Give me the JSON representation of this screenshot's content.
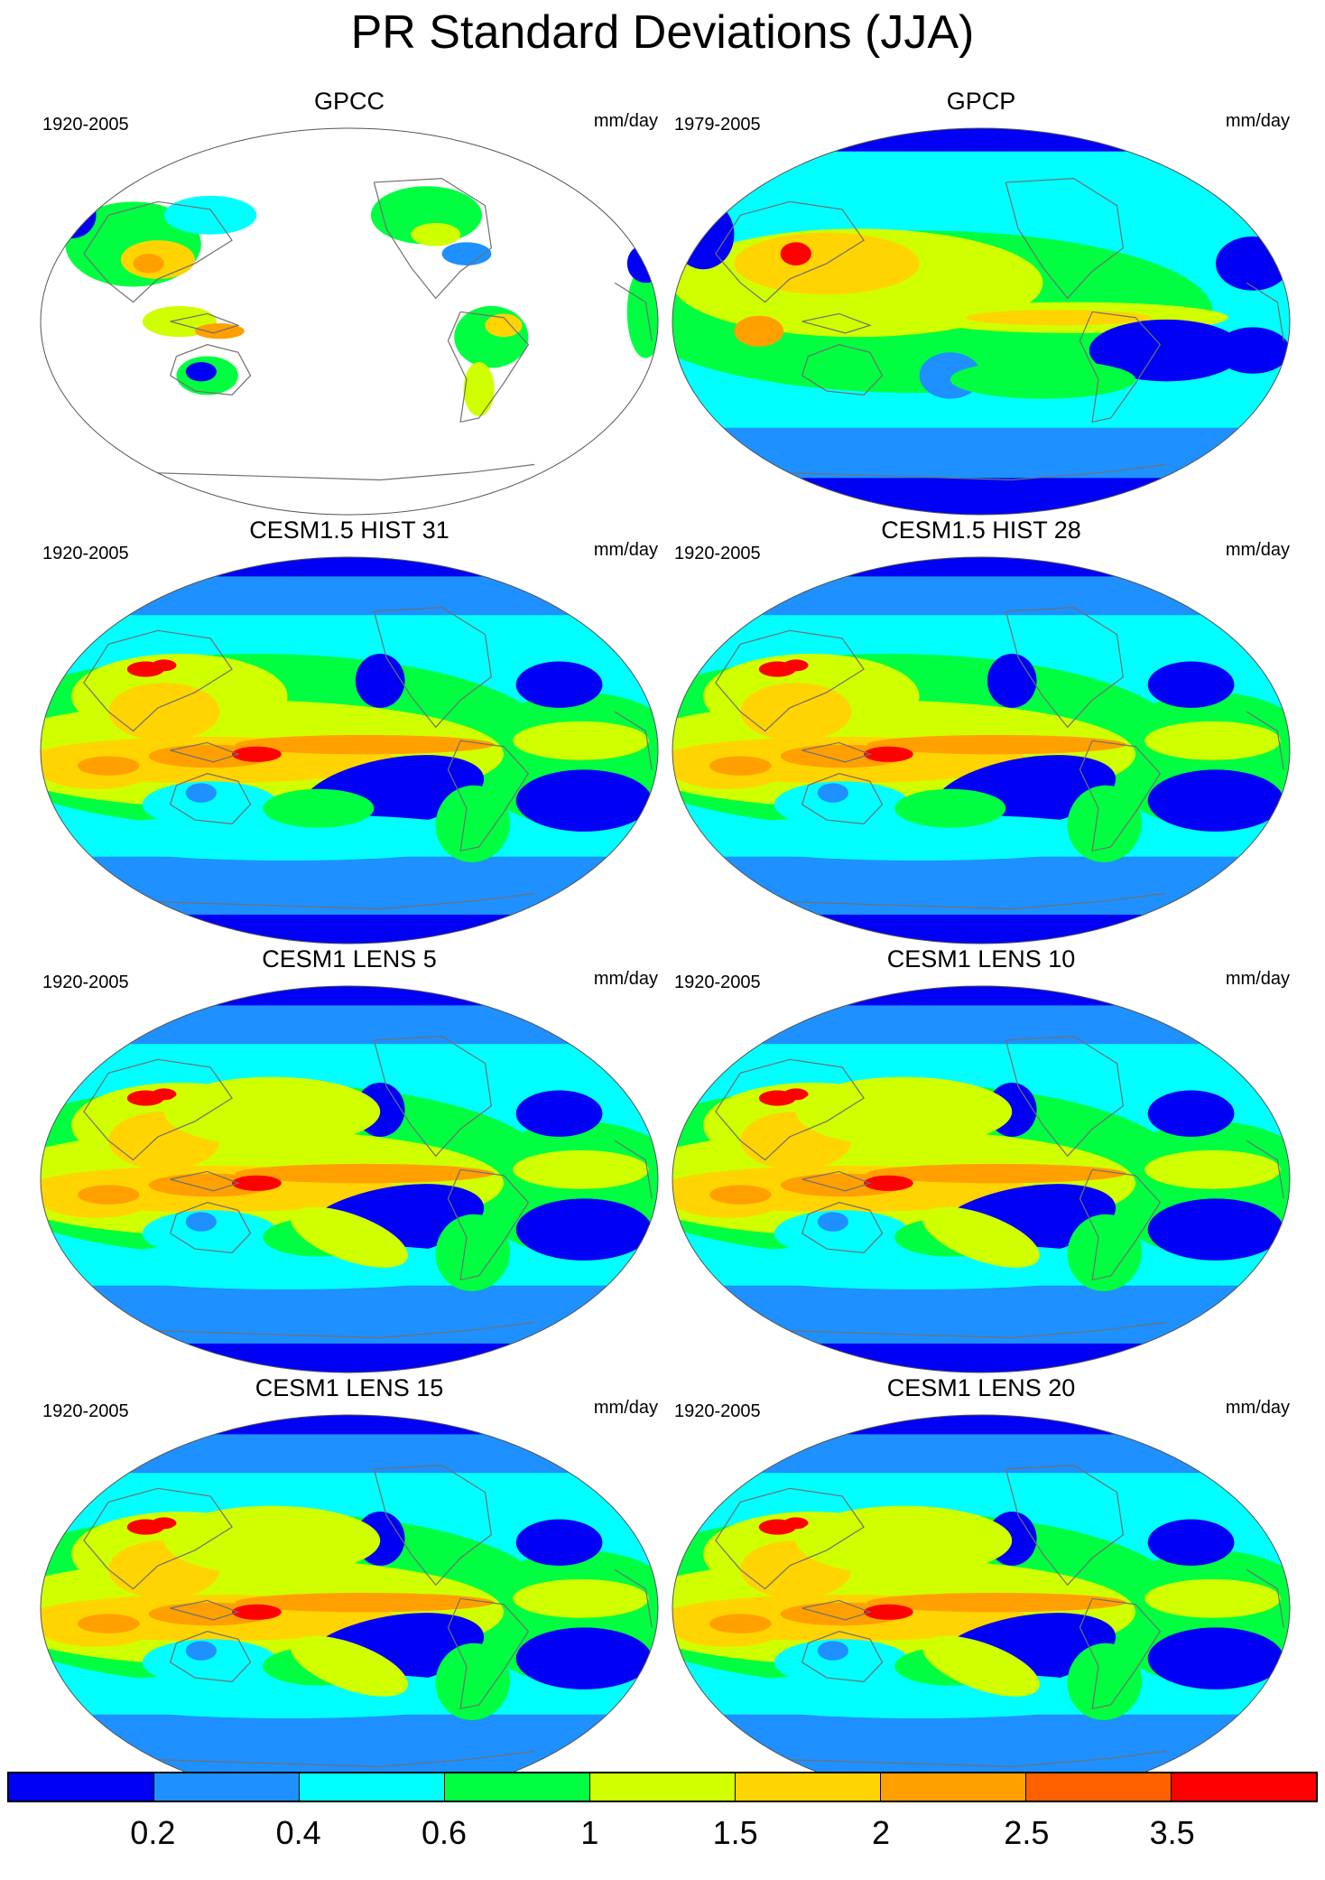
{
  "figure": {
    "title": "PR Standard Deviations (JJA)",
    "colorbar": {
      "colors": [
        "#0000f5",
        "#1e90ff",
        "#00ffff",
        "#00ff40",
        "#d0ff00",
        "#ffd400",
        "#ffa000",
        "#ff6000",
        "#ff0000"
      ],
      "labels": [
        "0.2",
        "0.4",
        "0.6",
        "1",
        "1.5",
        "2",
        "2.5",
        "3.5"
      ]
    },
    "panels": [
      {
        "title": "GPCC",
        "period": "1920-2005",
        "units": "mm/day",
        "mode": "land"
      },
      {
        "title": "GPCP",
        "period": "1979-2005",
        "units": "mm/day",
        "mode": "obs"
      },
      {
        "title": "CESM1.5 HIST 31",
        "period": "1920-2005",
        "units": "mm/day",
        "mode": "model"
      },
      {
        "title": "CESM1.5 HIST 28",
        "period": "1920-2005",
        "units": "mm/day",
        "mode": "model"
      },
      {
        "title": "CESM1 LENS 5",
        "period": "1920-2005",
        "units": "mm/day",
        "mode": "model"
      },
      {
        "title": "CESM1 LENS 10",
        "period": "1920-2005",
        "units": "mm/day",
        "mode": "model"
      },
      {
        "title": "CESM1 LENS 15",
        "period": "1920-2005",
        "units": "mm/day",
        "mode": "model"
      },
      {
        "title": "CESM1 LENS 20",
        "period": "1920-2005",
        "units": "mm/day",
        "mode": "model"
      }
    ]
  }
}
